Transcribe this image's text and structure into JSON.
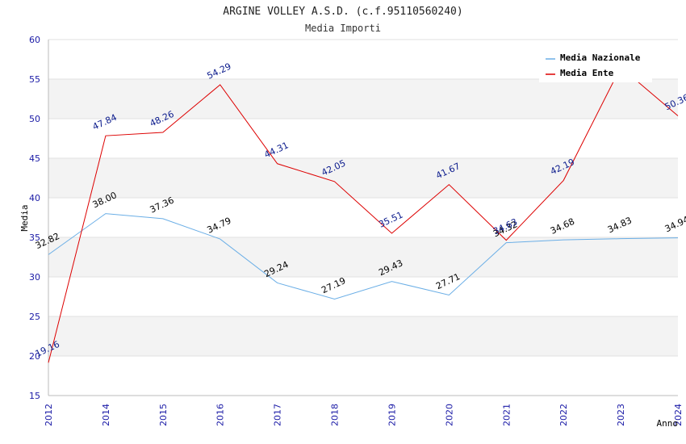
{
  "chart_data": {
    "type": "line",
    "title": "ARGINE VOLLEY A.S.D. (c.f.95110560240)",
    "subtitle": "Media Importi",
    "xlabel": "Anno",
    "ylabel": "Media",
    "ylim": [
      15,
      60
    ],
    "yticks": [
      "15",
      "20",
      "25",
      "30",
      "35",
      "40",
      "45",
      "50",
      "55",
      "60"
    ],
    "categories": [
      "2012",
      "2014",
      "2015",
      "2016",
      "2017",
      "2018",
      "2019",
      "2020",
      "2021",
      "2022",
      "2023",
      "2024"
    ],
    "grid": true,
    "legend_position": "top-right",
    "series": [
      {
        "name": "Media Nazionale",
        "color": "#6aaee6",
        "label_color": "#000000",
        "values": [
          32.82,
          38.0,
          37.36,
          34.79,
          29.24,
          27.19,
          29.43,
          27.71,
          34.32,
          34.68,
          34.83,
          34.94
        ],
        "labels": [
          "32.82",
          "38.00",
          "37.36",
          "34.79",
          "29.24",
          "27.19",
          "29.43",
          "27.71",
          "34.32",
          "34.68",
          "34.83",
          "34.94"
        ]
      },
      {
        "name": "Media Ente",
        "color": "#dd0000",
        "label_color": "#0a1a8c",
        "values": [
          19.16,
          47.84,
          48.26,
          54.29,
          44.31,
          42.05,
          35.51,
          41.67,
          34.63,
          42.19,
          56.5,
          50.36
        ],
        "labels": [
          "19.16",
          "47.84",
          "48.26",
          "54.29",
          "44.31",
          "42.05",
          "35.51",
          "41.67",
          "34.63",
          "42.19",
          "",
          "50.36"
        ]
      }
    ]
  }
}
